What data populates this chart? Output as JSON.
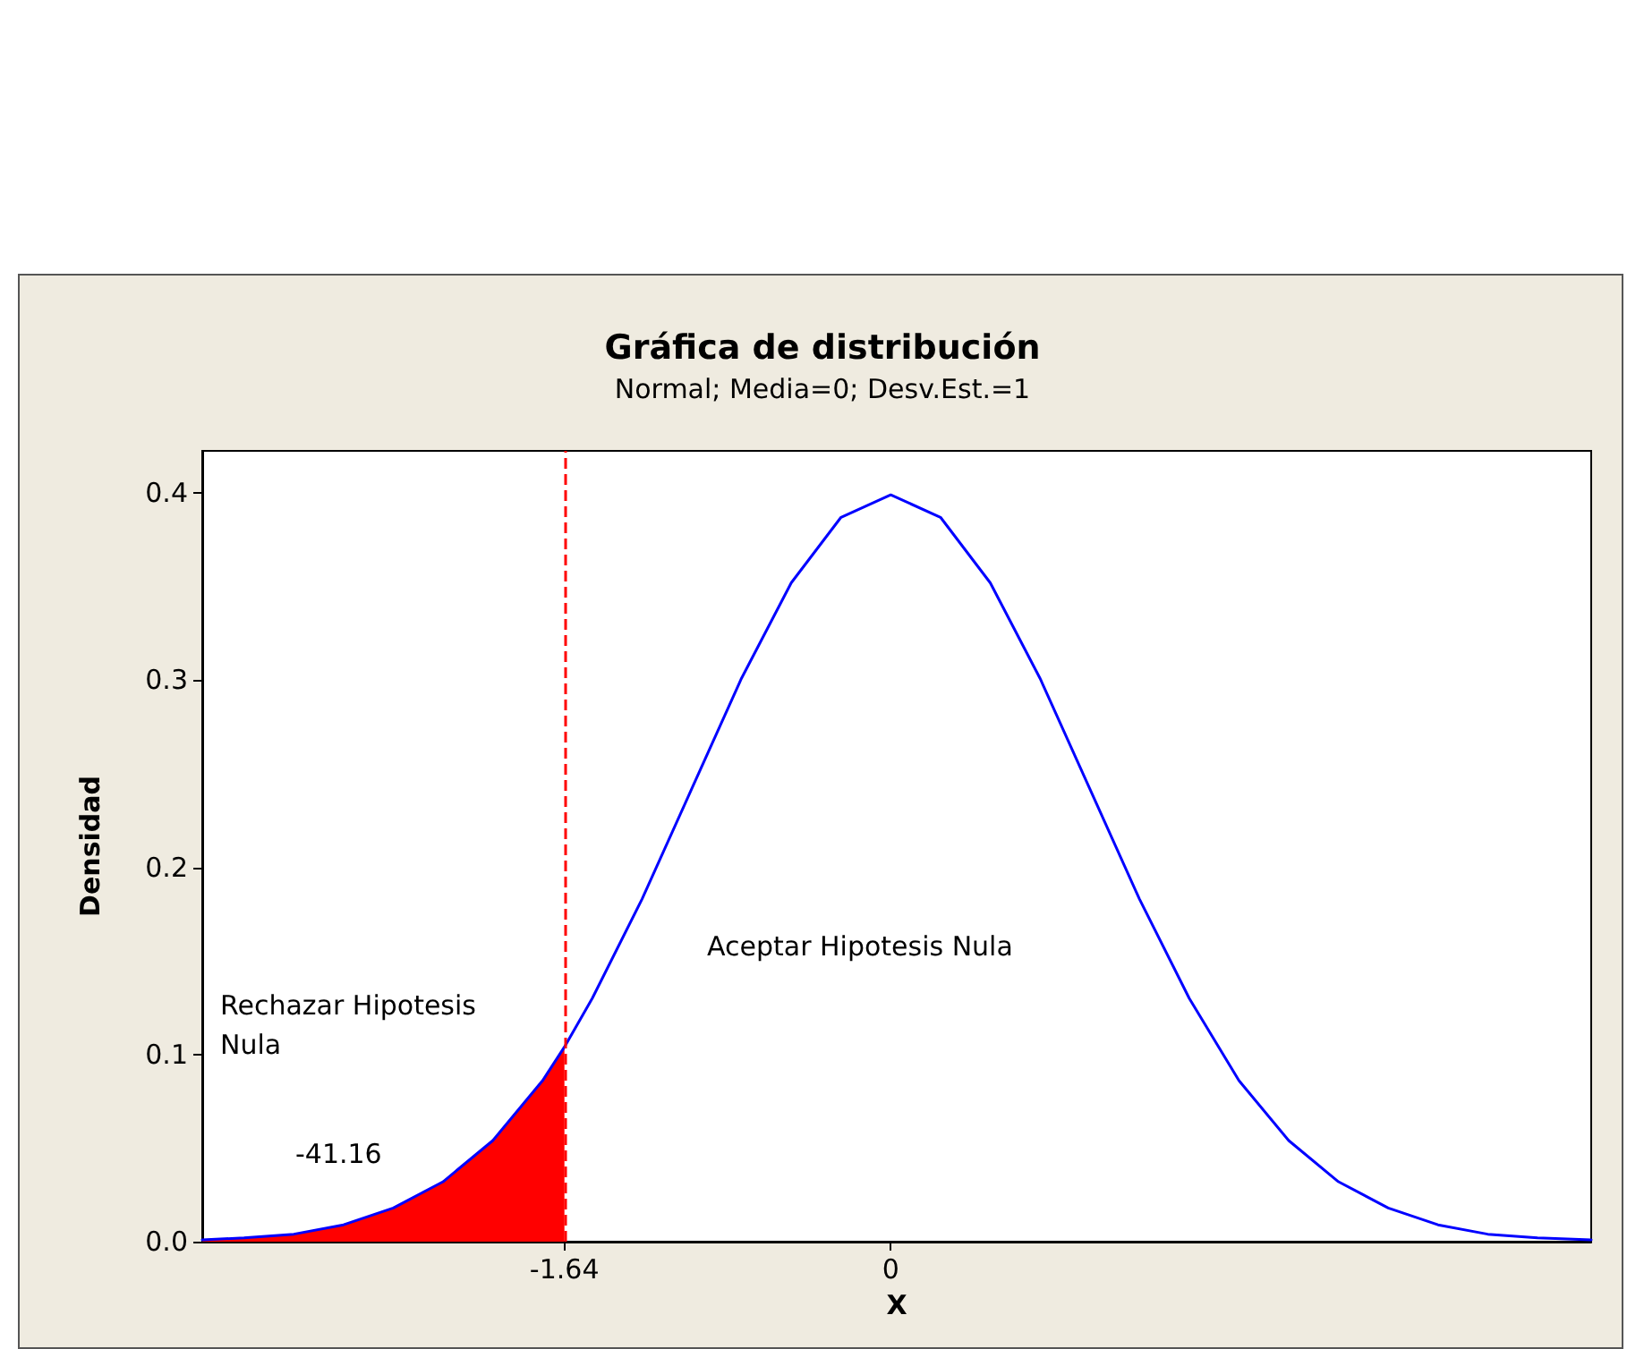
{
  "chart_data": {
    "type": "line",
    "title": "Gráfica de distribución",
    "subtitle": "Normal; Media=0; Desv.Est.=1",
    "xlabel": "X",
    "ylabel": "Densidad",
    "xlim": [
      -3.46,
      3.52
    ],
    "xticks": [
      -1.64,
      0
    ],
    "ylim": [
      0,
      0.4225
    ],
    "yticks": [
      {
        "value": 0,
        "label": "0.0"
      },
      {
        "value": 0.1,
        "label": "0.1"
      },
      {
        "value": 0.2,
        "label": "0.2"
      },
      {
        "value": 0.3,
        "label": "0.3"
      },
      {
        "value": 0.4,
        "label": "0.4"
      }
    ],
    "marker": "none",
    "line_style": "solid",
    "grid": false,
    "series": [
      {
        "type": "area",
        "color": "#ff0000",
        "x": [
          -3.46,
          -3.25,
          -3,
          -2.75,
          -2.5,
          -2.25,
          -2,
          -1.75,
          -1.64
        ],
        "values": [
          0.001,
          0.002,
          0.004,
          0.009,
          0.018,
          0.032,
          0.054,
          0.086,
          0.104
        ]
      },
      {
        "color": "#0000ff",
        "x": [
          -3.46,
          -3.25,
          -3,
          -2.75,
          -2.5,
          -2.25,
          -2,
          -1.75,
          -1.64,
          -1.5,
          -1.25,
          -1,
          -0.75,
          -0.5,
          -0.25,
          0,
          0.25,
          0.5,
          0.75,
          1,
          1.25,
          1.5,
          1.75,
          2,
          2.25,
          2.5,
          2.75,
          3,
          3.25,
          3.52
        ],
        "values": [
          0.001,
          0.002,
          0.004,
          0.009,
          0.018,
          0.032,
          0.054,
          0.086,
          0.104,
          0.13,
          0.183,
          0.242,
          0.301,
          0.352,
          0.387,
          0.399,
          0.387,
          0.352,
          0.301,
          0.242,
          0.183,
          0.13,
          0.086,
          0.054,
          0.032,
          0.018,
          0.009,
          0.004,
          0.002,
          0.001
        ]
      }
    ],
    "ref_lines": [
      {
        "axis": "x",
        "value": -1.64,
        "color": "#ff0000",
        "line_style": "dashed"
      }
    ],
    "annotations": [
      "Rechazar Hipotesis Nula",
      "Aceptar Hipotesis Nula",
      "-41.16"
    ]
  }
}
